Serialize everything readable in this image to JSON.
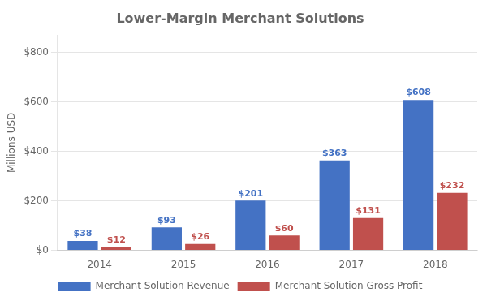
{
  "chart_data": {
    "type": "bar",
    "title": "Lower-Margin Merchant Solutions",
    "categories": [
      "2014",
      "2015",
      "2016",
      "2017",
      "2018"
    ],
    "series": [
      {
        "name": "Merchant Solution Revenue",
        "color": "#4472C4",
        "values": [
          38,
          93,
          201,
          363,
          608
        ],
        "value_labels": [
          "$38",
          "$93",
          "$201",
          "$363",
          "$608"
        ]
      },
      {
        "name": "Merchant Solution Gross Profit",
        "color": "#C0504D",
        "values": [
          12,
          26,
          60,
          131,
          232
        ],
        "value_labels": [
          "$12",
          "$26",
          "$60",
          "$131",
          "$232"
        ]
      }
    ],
    "ylabel": "Millions USD",
    "ylim": [
      0,
      870
    ],
    "yticks": [
      {
        "value": 0,
        "label": "$0"
      },
      {
        "value": 200,
        "label": "$200"
      },
      {
        "value": 400,
        "label": "$400"
      },
      {
        "value": 600,
        "label": "$600"
      },
      {
        "value": 800,
        "label": "$800"
      }
    ],
    "grid": true,
    "legend": "bottom",
    "data_labels": true
  }
}
